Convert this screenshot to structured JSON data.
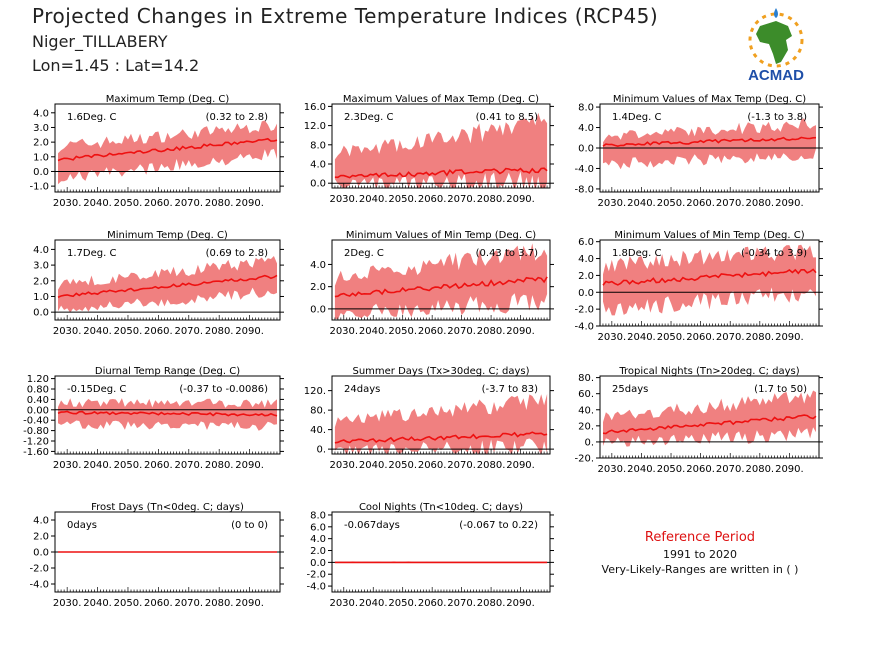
{
  "header": {
    "title": "Projected Changes in Extreme Temperature Indices (RCP45)",
    "location": "Niger_TILLABERY",
    "coords": "Lon=1.45 : Lat=14.2",
    "logo_text": "ACMAD"
  },
  "colors": {
    "band": "#f08080",
    "line": "#ee1111",
    "zero": "#000000",
    "logo_africa": "#3c8c2a",
    "logo_sun": "#f0a020",
    "logo_text": "#1f4fa8",
    "ref_title": "#dd1111"
  },
  "reference": {
    "title": "Reference Period",
    "years": "1991 to 2020",
    "note": "Very-Likely-Ranges are written in ( )"
  },
  "chart_data": [
    {
      "type": "area",
      "title": "Maximum Temp (Deg. C)",
      "value_label": "1.6Deg. C",
      "range_label": "(0.32 to 2.8)",
      "x_ticks": [
        "2030.",
        "2040.",
        "2050.",
        "2060.",
        "2070.",
        "2080.",
        "2090."
      ],
      "xlim": [
        2026,
        2100
      ],
      "y_ticks": [
        "4.0",
        "3.0",
        "2.0",
        "1.0",
        "0.0",
        "-1.0"
      ],
      "y_tick_values": [
        4,
        3,
        2,
        1,
        0,
        -1
      ],
      "ylim": [
        -1.4,
        4.6
      ],
      "mean_start": 0.8,
      "mean_end": 2.2,
      "lower_start": -0.4,
      "lower_end": 1.3,
      "upper_start": 1.6,
      "upper_end": 3.1
    },
    {
      "type": "area",
      "title": "Maximum Values of Max Temp (Deg. C)",
      "value_label": "2.3Deg. C",
      "range_label": "(0.41 to 8.5)",
      "x_ticks": [
        "2030.",
        "2040.",
        "2050.",
        "2060.",
        "2070.",
        "2080.",
        "2090."
      ],
      "xlim": [
        2026,
        2100
      ],
      "y_ticks": [
        "16.0",
        "12.0",
        "8.0",
        "4.0",
        "0.0"
      ],
      "y_tick_values": [
        16,
        12,
        8,
        4,
        0
      ],
      "ylim": [
        -1,
        16.5
      ],
      "mean_start": 1.4,
      "mean_end": 2.8,
      "lower_start": 0.2,
      "lower_end": 0.8,
      "upper_start": 6,
      "upper_end": 12
    },
    {
      "type": "area",
      "title": "Minimum Values of Max Temp (Deg. C)",
      "value_label": "1.4Deg. C",
      "range_label": "(-1.3 to 3.8)",
      "x_ticks": [
        "2030.",
        "2040.",
        "2050.",
        "2060.",
        "2070.",
        "2080.",
        "2090."
      ],
      "xlim": [
        2026,
        2100
      ],
      "y_ticks": [
        "8.0",
        "4.0",
        "0.0",
        "-4.0",
        "-8.0"
      ],
      "y_tick_values": [
        8,
        4,
        0,
        -4,
        -8
      ],
      "ylim": [
        -8.6,
        8.6
      ],
      "mean_start": 0.5,
      "mean_end": 2.0,
      "lower_start": -3.0,
      "lower_end": -1.0,
      "upper_start": 2.0,
      "upper_end": 4.5
    },
    {
      "type": "area",
      "title": "Minimum Temp (Deg. C)",
      "value_label": "1.7Deg. C",
      "range_label": "(0.69 to 2.8)",
      "x_ticks": [
        "2030.",
        "2040.",
        "2050.",
        "2060.",
        "2070.",
        "2080.",
        "2090."
      ],
      "xlim": [
        2026,
        2100
      ],
      "y_ticks": [
        "4.0",
        "3.0",
        "2.0",
        "1.0",
        "0.0"
      ],
      "y_tick_values": [
        4,
        3,
        2,
        1,
        0
      ],
      "ylim": [
        -0.5,
        4.6
      ],
      "mean_start": 1.0,
      "mean_end": 2.3,
      "lower_start": 0.2,
      "lower_end": 1.4,
      "upper_start": 1.7,
      "upper_end": 3.2
    },
    {
      "type": "area",
      "title": "Minimum Values of Min Temp (Deg. C)",
      "value_label": "2Deg. C",
      "range_label": "(0.43 to 3.7)",
      "x_ticks": [
        "2030.",
        "2040.",
        "2050.",
        "2060.",
        "2070.",
        "2080.",
        "2090."
      ],
      "xlim": [
        2026,
        2100
      ],
      "y_ticks": [
        "4.0",
        "2.0",
        "0.0"
      ],
      "y_tick_values": [
        4,
        2,
        0
      ],
      "ylim": [
        -1.0,
        6.2
      ],
      "mean_start": 1.2,
      "mean_end": 2.7,
      "lower_start": -0.3,
      "lower_end": 0.9,
      "upper_start": 2.6,
      "upper_end": 5.2
    },
    {
      "type": "area",
      "title": "Minimum Values of Min Temp (Deg. C)",
      "value_label": "1.8Deg. C",
      "range_label": "(-0.34 to 3.9)",
      "x_ticks": [
        "2030.",
        "2040.",
        "2050.",
        "2060.",
        "2070.",
        "2080.",
        "2090."
      ],
      "xlim": [
        2026,
        2100
      ],
      "y_ticks": [
        "6.0",
        "4.0",
        "2.0",
        "0.0",
        "-2.0",
        "-4.0"
      ],
      "y_tick_values": [
        6,
        4,
        2,
        0,
        -2,
        -4
      ],
      "ylim": [
        -4.0,
        6.2
      ],
      "mean_start": 1.0,
      "mean_end": 2.6,
      "lower_start": -1.8,
      "lower_end": 0.2,
      "upper_start": 3.0,
      "upper_end": 4.8
    },
    {
      "type": "area",
      "title": "Diurnal Temp Range (Deg. C)",
      "value_label": "-0.15Deg. C",
      "range_label": "(-0.37 to -0.0086)",
      "x_ticks": [
        "2030.",
        "2040.",
        "2050.",
        "2060.",
        "2070.",
        "2080.",
        "2090."
      ],
      "xlim": [
        2026,
        2100
      ],
      "y_ticks": [
        "1.20",
        "0.80",
        "0.40",
        "0.00",
        "-0.40",
        "-0.80",
        "-1.20",
        "-1.60"
      ],
      "y_tick_values": [
        1.2,
        0.8,
        0.4,
        0,
        -0.4,
        -0.8,
        -1.2,
        -1.6
      ],
      "ylim": [
        -1.7,
        1.3
      ],
      "mean_start": -0.1,
      "mean_end": -0.2,
      "lower_start": -0.55,
      "lower_end": -0.6,
      "upper_start": 0.25,
      "upper_end": 0.2
    },
    {
      "type": "area",
      "title": "Summer Days (Tx>30deg. C; days)",
      "value_label": "24days",
      "range_label": "(-3.7 to 83)",
      "x_ticks": [
        "2030.",
        "2040.",
        "2050.",
        "2060.",
        "2070.",
        "2080.",
        "2090."
      ],
      "xlim": [
        2026,
        2100
      ],
      "y_ticks": [
        "120.",
        "80.",
        "40.",
        "0."
      ],
      "y_tick_values": [
        120,
        80,
        40,
        0
      ],
      "ylim": [
        -10,
        150
      ],
      "mean_start": 15,
      "mean_end": 32,
      "lower_start": 0,
      "lower_end": 8,
      "upper_start": 55,
      "upper_end": 95
    },
    {
      "type": "area",
      "title": "Tropical Nights (Tn>20deg. C; days)",
      "value_label": "25days",
      "range_label": "(1.7 to 50)",
      "x_ticks": [
        "2030.",
        "2040.",
        "2050.",
        "2060.",
        "2070.",
        "2080.",
        "2090."
      ],
      "xlim": [
        2026,
        2100
      ],
      "y_ticks": [
        "80.",
        "60.",
        "40.",
        "20.",
        "0.",
        "-20."
      ],
      "y_tick_values": [
        80,
        60,
        40,
        20,
        0,
        -20
      ],
      "ylim": [
        -20,
        82
      ],
      "mean_start": 12,
      "mean_end": 32,
      "lower_start": 0,
      "lower_end": 12,
      "upper_start": 30,
      "upper_end": 55
    },
    {
      "type": "area",
      "title": "Frost Days (Tn<0deg. C; days)",
      "value_label": "0days",
      "range_label": "(0 to 0)",
      "x_ticks": [
        "2030.",
        "2040.",
        "2050.",
        "2060.",
        "2070.",
        "2080.",
        "2090."
      ],
      "xlim": [
        2026,
        2100
      ],
      "y_ticks": [
        "4.0",
        "2.0",
        "0.0",
        "-2.0",
        "-4.0"
      ],
      "y_tick_values": [
        4,
        2,
        0,
        -2,
        -4
      ],
      "ylim": [
        -5,
        5
      ],
      "mean_start": 0,
      "mean_end": 0,
      "lower_start": 0,
      "lower_end": 0,
      "upper_start": 0,
      "upper_end": 0
    },
    {
      "type": "area",
      "title": "Cool Nights (Tn<10deg. C; days)",
      "value_label": "-0.067days",
      "range_label": "(-0.067 to 0.22)",
      "x_ticks": [
        "2030.",
        "2040.",
        "2050.",
        "2060.",
        "2070.",
        "2080.",
        "2090."
      ],
      "xlim": [
        2026,
        2100
      ],
      "y_ticks": [
        "8.0",
        "6.0",
        "4.0",
        "2.0",
        "0.0",
        "-2.0",
        "-4.0"
      ],
      "y_tick_values": [
        8,
        6,
        4,
        2,
        0,
        -2,
        -4
      ],
      "ylim": [
        -5,
        8.5
      ],
      "mean_start": 0,
      "mean_end": 0,
      "lower_start": 0,
      "lower_end": 0,
      "upper_start": 0.1,
      "upper_end": 0
    }
  ]
}
